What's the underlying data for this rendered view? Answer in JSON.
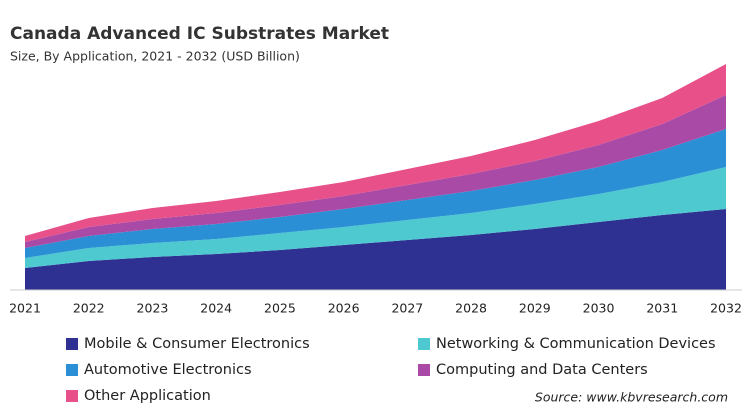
{
  "chart_data": {
    "type": "stacked_area",
    "title": "Canada Advanced IC Substrates Market",
    "subtitle": "Size, By Application, 2021 - 2032 (USD Billion)",
    "source": "Source: www.kbvresearch.com",
    "categories": [
      "2021",
      "2022",
      "2023",
      "2024",
      "2025",
      "2026",
      "2027",
      "2028",
      "2029",
      "2030",
      "2031",
      "2032"
    ],
    "series": [
      {
        "name": "Mobile & Consumer Electronics",
        "color": "#2e3192",
        "values": [
          22,
          29,
          33,
          36,
          40,
          45,
          50,
          55,
          61,
          68,
          75,
          81
        ]
      },
      {
        "name": "Networking & Communication Devices",
        "color": "#4ec9d0",
        "values": [
          10,
          13,
          14,
          15,
          17,
          18,
          20,
          22,
          25,
          28,
          33,
          42
        ]
      },
      {
        "name": "Automotive Electronics",
        "color": "#2a8fd4",
        "values": [
          10,
          12,
          14,
          15,
          16,
          18,
          20,
          22,
          24,
          27,
          32,
          38
        ]
      },
      {
        "name": "Computing and Data Centers",
        "color": "#a94ba6",
        "values": [
          6,
          9,
          10,
          11,
          12,
          13,
          15,
          17,
          19,
          22,
          26,
          34
        ]
      },
      {
        "name": "Other Application",
        "color": "#e8508a",
        "values": [
          6,
          9,
          11,
          12,
          13,
          14,
          16,
          18,
          21,
          24,
          26,
          31
        ]
      }
    ]
  }
}
